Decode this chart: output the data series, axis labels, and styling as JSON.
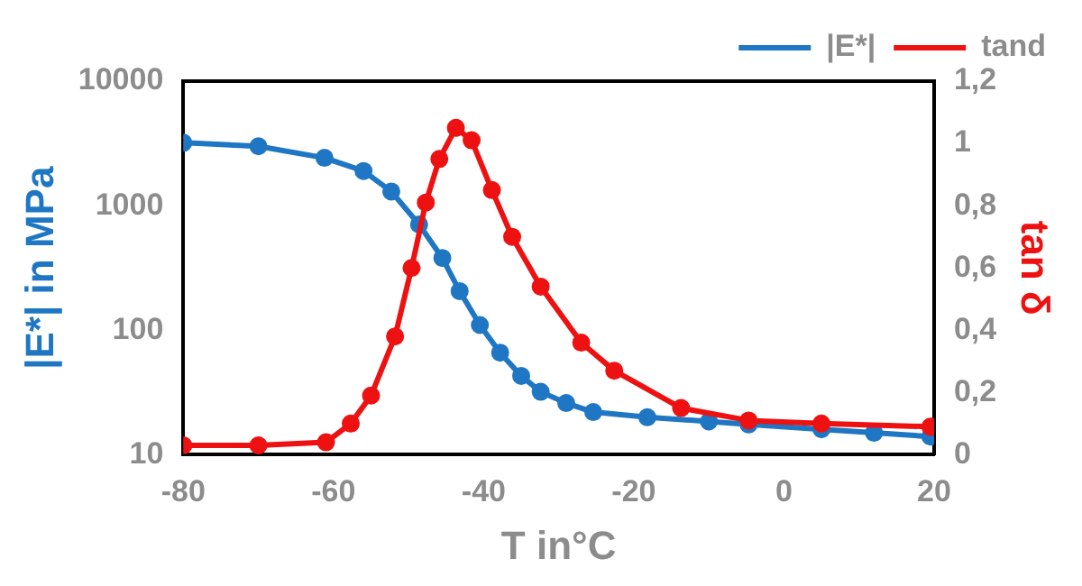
{
  "chart_data": {
    "type": "line",
    "xlabel": "T in°C",
    "ylabel": "|E*| in MPa",
    "y2label": "tan δ",
    "x": [
      -80,
      -70,
      -61.2,
      -56,
      -52.3,
      -48.6,
      -45.5,
      -43.2,
      -40.5,
      -37.8,
      -35,
      -32.4,
      -29,
      -25.4,
      -18.2,
      -10,
      -4.7,
      5,
      12,
      19.5
    ],
    "series": [
      {
        "name": "|E*|",
        "color": "#1f77c4",
        "values": [
          3200,
          3000,
          2420,
          1900,
          1300,
          706,
          380,
          206,
          110,
          66,
          43,
          32,
          26,
          22,
          20,
          18.5,
          17.5,
          16,
          15,
          14
        ]
      },
      {
        "name": "tand",
        "color": "#ee1111",
        "axis": "y2",
        "x": [
          -80,
          -70,
          -61,
          -57.7,
          -55,
          -51.8,
          -49.6,
          -47.7,
          -45.9,
          -43.7,
          -41.6,
          -38.9,
          -36.2,
          -32.4,
          -27,
          -22.6,
          -13.7,
          -4.7,
          5,
          19.5
        ],
        "values": [
          0.03,
          0.03,
          0.04,
          0.1,
          0.19,
          0.38,
          0.6,
          0.81,
          0.95,
          1.05,
          1.01,
          0.85,
          0.7,
          0.54,
          0.36,
          0.27,
          0.15,
          0.11,
          0.1,
          0.09
        ]
      }
    ],
    "xlim": [
      -80,
      20
    ],
    "xticks": [
      -80,
      -60,
      -40,
      -20,
      0,
      20
    ],
    "log": "y",
    "ylim": [
      10,
      10000
    ],
    "yticks": [
      10,
      100,
      1000,
      10000
    ],
    "y2lim": [
      0,
      1.2
    ],
    "y2ticks": [
      0,
      {
        "value": 0.2,
        "label": "0,2"
      },
      {
        "value": 0.4,
        "label": "0,4"
      },
      {
        "value": 0.6,
        "label": "0,6"
      },
      {
        "value": 0.8,
        "label": "0,8"
      },
      1,
      {
        "value": 1.2,
        "label": "1,2"
      }
    ],
    "grid": false,
    "legend": "top right",
    "marker": "circle",
    "line_style": "solid"
  }
}
